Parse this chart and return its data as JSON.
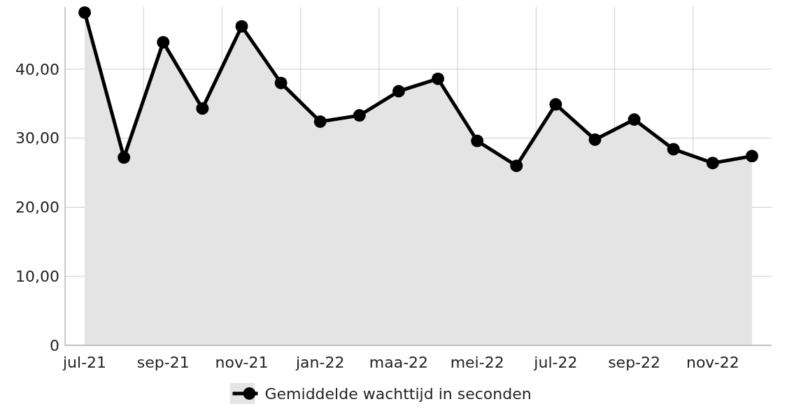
{
  "chart_data": {
    "type": "area",
    "categories": [
      "jul-21",
      null,
      "sep-21",
      null,
      "nov-21",
      null,
      "jan-22",
      null,
      "maa-22",
      null,
      "mei-22",
      null,
      "jul-22",
      null,
      "sep-22",
      null,
      "nov-22",
      null
    ],
    "series": [
      {
        "name": "Gemiddelde wachttijd in seconden",
        "color": "#000000",
        "values": [
          48.2,
          27.2,
          43.9,
          34.3,
          46.2,
          38.0,
          32.4,
          33.3,
          36.8,
          38.6,
          29.6,
          26.0,
          34.9,
          29.8,
          32.7,
          28.4,
          26.4,
          27.4
        ]
      }
    ],
    "ylim": [
      0,
      49
    ],
    "yticks": [
      0,
      {
        "value": 10,
        "label": "10,00"
      },
      {
        "value": 20,
        "label": "20,00"
      },
      {
        "value": 30,
        "label": "30,00"
      },
      {
        "value": 40,
        "label": "40,00"
      }
    ],
    "grid": true,
    "legend": "bottom",
    "marker": "circle",
    "line_style": "solid"
  }
}
